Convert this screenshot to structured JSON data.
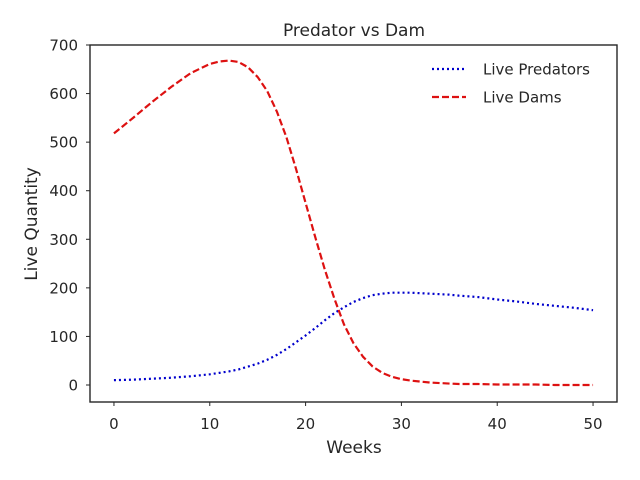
{
  "chart_data": {
    "type": "line",
    "title": "Predator vs Dam",
    "xlabel": "Weeks",
    "ylabel": "Live Quantity",
    "xlim": [
      -2.5,
      52.5
    ],
    "ylim": [
      -35,
      700
    ],
    "xticks": [
      0,
      10,
      20,
      30,
      40,
      50
    ],
    "yticks": [
      0,
      100,
      200,
      300,
      400,
      500,
      600,
      700
    ],
    "grid": false,
    "legend_position": "top-right",
    "x": [
      0,
      2,
      4,
      6,
      8,
      10,
      11,
      12,
      13,
      14,
      15,
      16,
      17,
      18,
      19,
      20,
      21,
      22,
      23,
      24,
      25,
      26,
      27,
      28,
      29,
      30,
      31,
      32,
      33,
      34,
      35,
      36,
      38,
      40,
      42,
      44,
      46,
      48,
      50
    ],
    "series": [
      {
        "name": "Live Predators",
        "color": "#0000cc",
        "style": "dotted",
        "values": [
          10,
          11,
          13,
          15,
          18,
          22,
          25,
          28,
          32,
          38,
          44,
          52,
          62,
          74,
          88,
          102,
          117,
          133,
          148,
          160,
          171,
          179,
          185,
          188,
          190,
          190,
          190,
          189,
          188,
          187,
          186,
          184,
          181,
          176,
          172,
          167,
          163,
          159,
          154
        ]
      },
      {
        "name": "Live Dams",
        "color": "#dd1111",
        "style": "dashed",
        "values": [
          518,
          550,
          583,
          614,
          642,
          661,
          666,
          668,
          665,
          654,
          634,
          605,
          563,
          510,
          445,
          375,
          305,
          238,
          178,
          125,
          86,
          58,
          38,
          25,
          17,
          12,
          9,
          7,
          5,
          4,
          3,
          2,
          2,
          1,
          1,
          1,
          0,
          0,
          0
        ]
      }
    ]
  }
}
